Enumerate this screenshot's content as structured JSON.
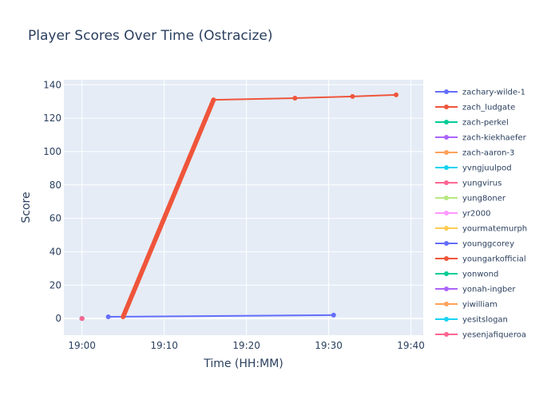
{
  "chart_data": {
    "type": "line",
    "title": "Player Scores Over Time (Ostracize)",
    "xlabel": "Time (HH:MM)",
    "ylabel": "Score",
    "x_axis": {
      "range_minutes": [
        -2.2,
        41.5
      ],
      "ticks": [
        {
          "minute": 0,
          "label": "19:00"
        },
        {
          "minute": 10,
          "label": "19:10"
        },
        {
          "minute": 20,
          "label": "19:20"
        },
        {
          "minute": 30,
          "label": "19:30"
        },
        {
          "minute": 40,
          "label": "19:40"
        }
      ]
    },
    "y_axis": {
      "range": [
        -10,
        143
      ],
      "ticks": [
        0,
        20,
        40,
        60,
        80,
        100,
        120,
        140
      ]
    },
    "grid": true,
    "legend_placement": "right",
    "x_unit_note": "minutes after 19:00",
    "series": [
      {
        "name": "zachary-wilde-1",
        "color": "#636efa",
        "points": [
          [
            3.2,
            1
          ],
          [
            30.6,
            2
          ]
        ]
      },
      {
        "name": "zach_ludgate",
        "color": "#ef553b",
        "points": [
          [
            5.0,
            1
          ],
          [
            16.0,
            131
          ],
          [
            25.9,
            132
          ],
          [
            32.9,
            133
          ],
          [
            38.2,
            134
          ]
        ]
      },
      {
        "name": "zach-perkel",
        "color": "#00cc96",
        "points": [
          [
            0,
            0
          ]
        ]
      },
      {
        "name": "zach-kiekhaefer",
        "color": "#ab63fa",
        "points": [
          [
            0,
            0
          ]
        ]
      },
      {
        "name": "zach-aaron-3",
        "color": "#ffa15a",
        "points": [
          [
            0,
            0
          ]
        ]
      },
      {
        "name": "yvngjuulpod",
        "color": "#19d3f3",
        "points": [
          [
            0,
            0
          ]
        ]
      },
      {
        "name": "yungvirus",
        "color": "#ff6692",
        "points": [
          [
            0,
            0
          ]
        ]
      },
      {
        "name": "yung8oner",
        "color": "#b6e880",
        "points": [
          [
            0,
            0
          ]
        ]
      },
      {
        "name": "yr2000",
        "color": "#ff97ff",
        "points": [
          [
            0,
            0
          ]
        ]
      },
      {
        "name": "yourmatemurph",
        "color": "#fecb52",
        "points": [
          [
            0,
            0
          ]
        ]
      },
      {
        "name": "younggcorey",
        "color": "#636efa",
        "points": [
          [
            0,
            0
          ]
        ]
      },
      {
        "name": "youngarkofficial",
        "color": "#ef553b",
        "points": [
          [
            0,
            0
          ]
        ]
      },
      {
        "name": "yonwond",
        "color": "#00cc96",
        "points": [
          [
            0,
            0
          ]
        ]
      },
      {
        "name": "yonah-ingber",
        "color": "#ab63fa",
        "points": [
          [
            0,
            0
          ]
        ]
      },
      {
        "name": "yiwilliam",
        "color": "#ffa15a",
        "points": [
          [
            0,
            0
          ]
        ]
      },
      {
        "name": "yesitslogan",
        "color": "#19d3f3",
        "points": [
          [
            0,
            0
          ]
        ]
      },
      {
        "name": "yesenjafiqueroa",
        "color": "#ff6692",
        "points": [
          [
            0,
            0
          ]
        ]
      }
    ]
  }
}
